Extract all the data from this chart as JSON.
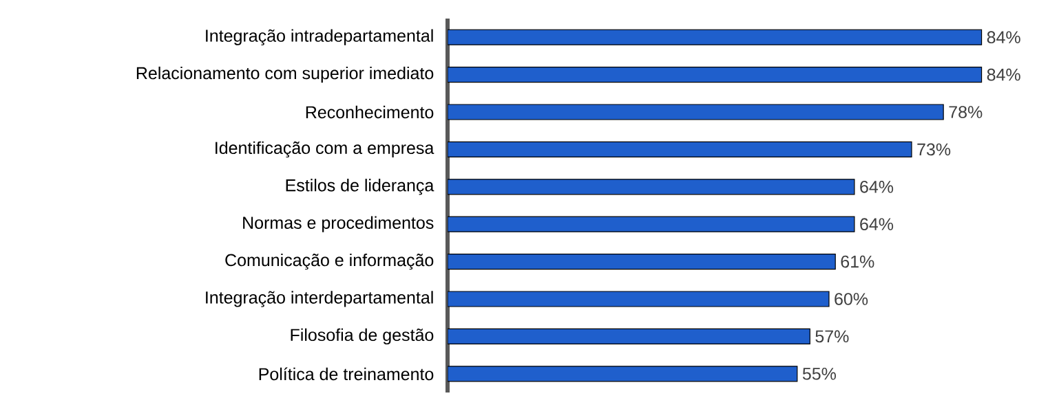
{
  "chart_data": {
    "type": "bar",
    "orientation": "horizontal",
    "categories": [
      "Integração intradepartamental",
      "Relacionamento com superior imediato",
      "Reconhecimento",
      "Identificação com a empresa",
      "Estilos de liderança",
      "Normas e procedimentos",
      "Comunicação e informação",
      "Integração interdepartamental",
      "Filosofia de gestão",
      "Política de treinamento"
    ],
    "values": [
      84,
      84,
      78,
      73,
      64,
      64,
      61,
      60,
      57,
      55
    ],
    "value_labels": [
      "84%",
      "84%",
      "78%",
      "73%",
      "64%",
      "64%",
      "61%",
      "60%",
      "57%",
      "55%"
    ],
    "color": "#1f5fcc"
  }
}
